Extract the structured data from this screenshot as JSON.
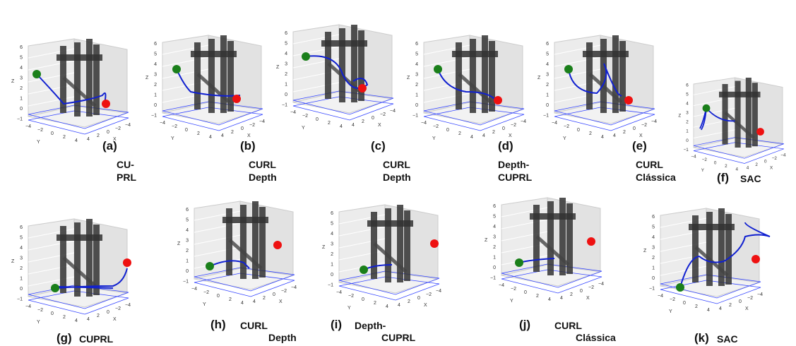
{
  "axes": {
    "x_label": "X",
    "y_label": "Y",
    "z_label": "Z",
    "zticks": [
      "6",
      "5",
      "4",
      "3",
      "2",
      "1",
      "0",
      "−1"
    ],
    "xticks": [
      "4",
      "2",
      "0",
      "−2",
      "−4"
    ],
    "yticks": [
      "−4",
      "−2",
      "0",
      "2",
      "4"
    ]
  },
  "panels": [
    {
      "label": "(a)",
      "caption": [
        "CU-",
        "PRL"
      ]
    },
    {
      "label": "(b)",
      "caption": [
        "CURL",
        "Depth"
      ]
    },
    {
      "label": "(c)",
      "caption": [
        "CURL",
        "Depth"
      ]
    },
    {
      "label": "(d)",
      "caption": [
        "Depth-",
        "CUPRL"
      ]
    },
    {
      "label": "(e)",
      "caption": [
        "CURL",
        "Clássica"
      ]
    },
    {
      "label": "(f)",
      "caption": [
        "SAC"
      ]
    },
    {
      "label": "(g)",
      "caption": [
        "CUPRL"
      ]
    },
    {
      "label": "(h)",
      "caption": [
        "CURL",
        "Depth"
      ]
    },
    {
      "label": "(i)",
      "caption": [
        "Depth-",
        "CUPRL"
      ]
    },
    {
      "label": "(j)",
      "caption": [
        "CURL",
        "Clássica"
      ]
    },
    {
      "label": "(k)",
      "caption": [
        "SAC"
      ]
    }
  ]
}
